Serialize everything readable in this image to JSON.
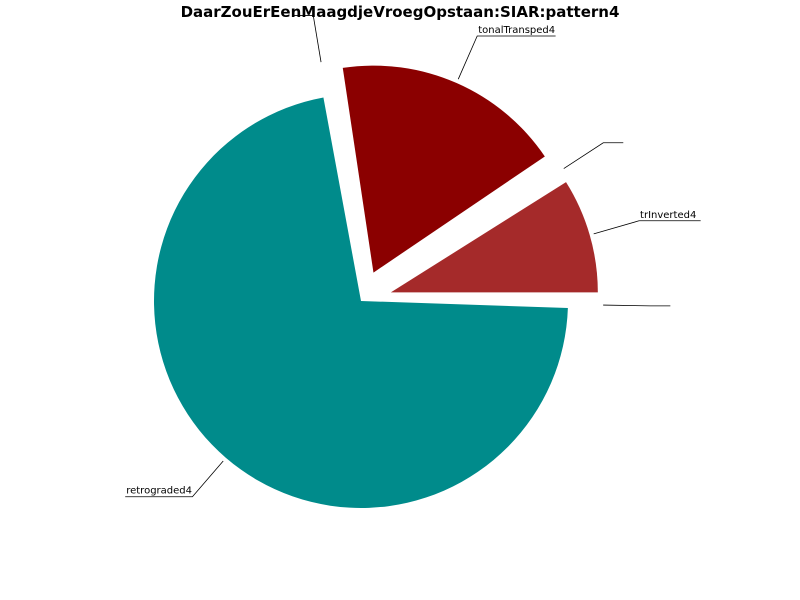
{
  "chart_data": {
    "type": "pie",
    "title": "DaarZouErEenMaagdjeVroegOpstaan:SIAR:pattern4",
    "slices": [
      {
        "label": "trInverted4",
        "value": 8.33,
        "color": "#A52A2A",
        "exploded": true
      },
      {
        "label": "",
        "value": 0.5,
        "color": "#FFFFFF",
        "exploded": true
      },
      {
        "label": "tonalTransped4",
        "value": 16.67,
        "color": "#8B0000",
        "exploded": true
      },
      {
        "label": "",
        "value": 0.5,
        "color": "#FFFFFF",
        "exploded": true
      },
      {
        "label": "retrograded4",
        "value": 66.67,
        "color": "#008B8B",
        "exploded": false
      },
      {
        "label": "",
        "value": 0.5,
        "color": "#FFFFFF",
        "exploded": true
      }
    ],
    "start_angle_deg": 0,
    "direction": "counterclockwise",
    "legend": "none",
    "grid": false
  }
}
